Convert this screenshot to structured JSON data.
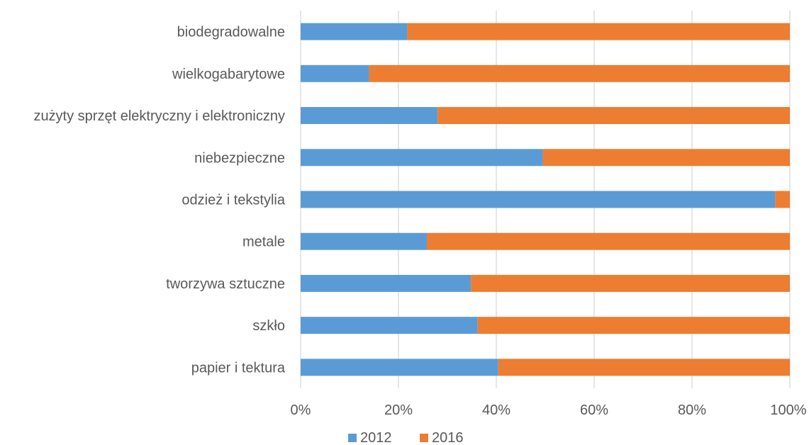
{
  "chart_data": {
    "type": "bar",
    "orientation": "horizontal",
    "stacked": "percent",
    "categories": [
      "biodegradowalne",
      "wielkogabarytowe",
      "zużyty sprzęt elektryczny i elektroniczny",
      "niebezpieczne",
      "odzież i tekstylia",
      "metale",
      "tworzywa sztuczne",
      "szkło",
      "papier i tektura"
    ],
    "series": [
      {
        "name": "2012",
        "color": "#5b9bd5",
        "values": [
          21.8,
          14.0,
          28.0,
          49.5,
          97.0,
          25.8,
          34.8,
          36.2,
          40.4
        ]
      },
      {
        "name": "2016",
        "color": "#ed7d31",
        "values": [
          78.2,
          86.0,
          72.0,
          50.5,
          3.0,
          74.2,
          65.2,
          63.8,
          59.6
        ]
      }
    ],
    "x_ticks": [
      "0%",
      "20%",
      "40%",
      "60%",
      "80%",
      "100%"
    ],
    "xlim": [
      0,
      100
    ],
    "grid": "vertical",
    "legend_position": "bottom",
    "title": "",
    "xlabel": "",
    "ylabel": ""
  }
}
